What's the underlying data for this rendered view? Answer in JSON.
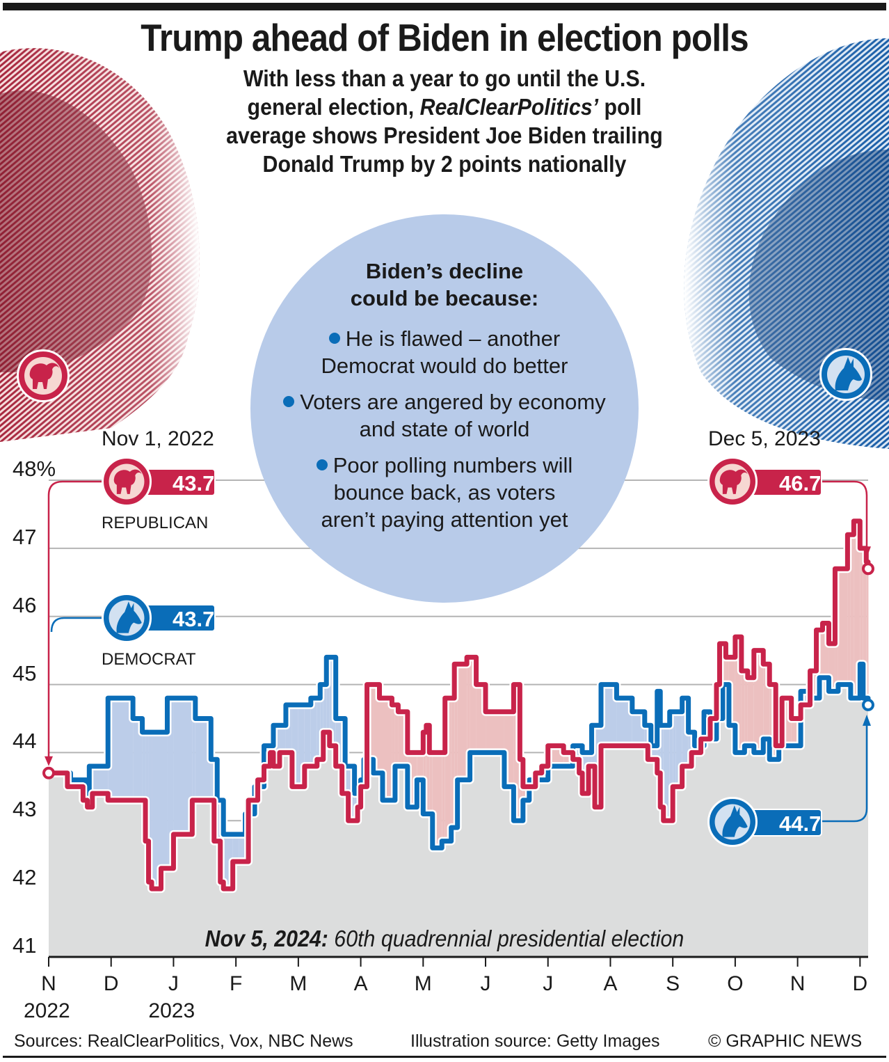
{
  "header": {
    "title": "Trump ahead of Biden in election polls",
    "subtitle_parts": [
      "With less than a year to go until the U.S. general election, ",
      "RealClearPolitics’",
      " poll average shows President Joe Biden trailing Donald Trump by 2 points nationally"
    ]
  },
  "circle": {
    "heading_line1": "Biden’s decline",
    "heading_line2": "could be because:",
    "items": [
      "He is flawed – another Democrat would do better",
      "Voters are angered by economy and state of world",
      "Poor polling numbers will bounce back, as voters aren’t paying attention yet"
    ]
  },
  "annotations": {
    "start_date": "Nov 1, 2022",
    "end_date": "Dec 5, 2023",
    "republican_label": "REPUBLICAN",
    "democrat_label": "DEMOCRAT",
    "start_rep_value": "43.7",
    "start_dem_value": "43.7",
    "end_rep_value": "46.7",
    "end_dem_value": "44.7",
    "republican_icon": "elephant-icon",
    "democrat_icon": "donkey-icon"
  },
  "note": {
    "bold": "Nov 5, 2024:",
    "text": " 60th quadrennial presidential election"
  },
  "footer": {
    "sources": "Sources: RealClearPolitics, Vox, NBC News",
    "illustration": "Illustration source: Getty Images",
    "copyright": "© GRAPHIC NEWS"
  },
  "colors": {
    "republican": "#c8234a",
    "democrat": "#0a6db8",
    "rep_fill": "#ecc0c0",
    "dem_fill": "#bccde9",
    "base_fill": "#dcdddd",
    "circle": "#b8cbe9"
  },
  "chart_data": {
    "type": "line",
    "title": "RealClearPolitics poll average, Trump vs Biden",
    "xlabel": "",
    "ylabel": "%",
    "ylim": [
      41,
      48
    ],
    "yticks": [
      "41",
      "42",
      "43",
      "44",
      "45",
      "46",
      "47",
      "48%"
    ],
    "xticks": [
      "N",
      "D",
      "J",
      "F",
      "M",
      "A",
      "M",
      "J",
      "J",
      "A",
      "S",
      "O",
      "N",
      "D"
    ],
    "year_labels": [
      {
        "label": "2022",
        "at": "N"
      },
      {
        "label": "2023",
        "at": "J"
      }
    ],
    "x_units": "months since Nov 1, 2022",
    "xlim": [
      0,
      13.13
    ],
    "grid": true,
    "series": [
      {
        "name": "Republican (Trump)",
        "step": true,
        "points": [
          [
            0,
            43.7
          ],
          [
            0.3,
            43.5
          ],
          [
            0.55,
            43.3
          ],
          [
            0.62,
            43.2
          ],
          [
            0.7,
            43.4
          ],
          [
            0.95,
            43.3
          ],
          [
            1.55,
            42.7
          ],
          [
            1.6,
            42.1
          ],
          [
            1.65,
            42.0
          ],
          [
            1.8,
            42.3
          ],
          [
            2.0,
            42.3
          ],
          [
            2.0,
            42.8
          ],
          [
            2.3,
            43.3
          ],
          [
            2.65,
            43.3
          ],
          [
            2.65,
            42.7
          ],
          [
            2.75,
            42.1
          ],
          [
            2.8,
            42.0
          ],
          [
            2.95,
            42.4
          ],
          [
            3.2,
            43.3
          ],
          [
            3.35,
            43.6
          ],
          [
            3.45,
            43.8
          ],
          [
            3.55,
            44.0
          ],
          [
            3.6,
            43.8
          ],
          [
            3.7,
            44.0
          ],
          [
            3.9,
            43.5
          ],
          [
            4.1,
            43.8
          ],
          [
            4.3,
            43.9
          ],
          [
            4.4,
            44.3
          ],
          [
            4.5,
            44.1
          ],
          [
            4.6,
            43.8
          ],
          [
            4.7,
            43.4
          ],
          [
            4.8,
            43.0
          ],
          [
            4.95,
            43.2
          ],
          [
            5.0,
            43.5
          ],
          [
            5.1,
            45.0
          ],
          [
            5.3,
            44.8
          ],
          [
            5.5,
            44.7
          ],
          [
            5.6,
            44.6
          ],
          [
            5.75,
            44.0
          ],
          [
            6.0,
            44.3
          ],
          [
            6.05,
            44.4
          ],
          [
            6.1,
            44.0
          ],
          [
            6.35,
            44.8
          ],
          [
            6.5,
            45.3
          ],
          [
            6.7,
            45.4
          ],
          [
            6.85,
            45.0
          ],
          [
            7.0,
            44.6
          ],
          [
            7.45,
            45.0
          ],
          [
            7.55,
            43.9
          ],
          [
            7.6,
            43.5
          ],
          [
            7.8,
            43.7
          ],
          [
            7.9,
            43.8
          ],
          [
            8.0,
            44.1
          ],
          [
            8.25,
            44.0
          ],
          [
            8.4,
            43.9
          ],
          [
            8.5,
            43.7
          ],
          [
            8.55,
            43.4
          ],
          [
            8.65,
            43.8
          ],
          [
            8.75,
            43.2
          ],
          [
            8.85,
            44.1
          ],
          [
            9.35,
            44.1
          ],
          [
            9.6,
            43.9
          ],
          [
            9.75,
            43.7
          ],
          [
            9.8,
            43.2
          ],
          [
            9.85,
            43.0
          ],
          [
            10.0,
            43.5
          ],
          [
            10.15,
            43.8
          ],
          [
            10.3,
            44.0
          ],
          [
            10.45,
            44.2
          ],
          [
            10.6,
            44.5
          ],
          [
            10.7,
            45.0
          ],
          [
            10.75,
            45.6
          ],
          [
            10.85,
            45.4
          ],
          [
            11.0,
            45.7
          ],
          [
            11.1,
            45.2
          ],
          [
            11.2,
            45.1
          ],
          [
            11.3,
            45.5
          ],
          [
            11.45,
            45.3
          ],
          [
            11.55,
            45.0
          ],
          [
            11.65,
            44.1
          ],
          [
            11.75,
            44.8
          ],
          [
            11.9,
            44.5
          ],
          [
            12.05,
            44.7
          ],
          [
            12.2,
            45.2
          ],
          [
            12.3,
            45.8
          ],
          [
            12.4,
            45.9
          ],
          [
            12.5,
            45.6
          ],
          [
            12.6,
            46.7
          ],
          [
            12.8,
            47.2
          ],
          [
            12.9,
            47.4
          ],
          [
            13.0,
            47.0
          ],
          [
            13.1,
            46.8
          ],
          [
            13.13,
            46.7
          ]
        ]
      },
      {
        "name": "Democrat (Biden)",
        "step": true,
        "points": [
          [
            0,
            43.7
          ],
          [
            0.35,
            43.6
          ],
          [
            0.6,
            43.4
          ],
          [
            0.65,
            43.8
          ],
          [
            0.95,
            44.8
          ],
          [
            1.35,
            44.5
          ],
          [
            1.5,
            44.3
          ],
          [
            1.9,
            44.8
          ],
          [
            2.35,
            44.5
          ],
          [
            2.6,
            43.9
          ],
          [
            2.7,
            43.3
          ],
          [
            2.8,
            42.8
          ],
          [
            3.05,
            42.8
          ],
          [
            3.15,
            43.1
          ],
          [
            3.3,
            43.5
          ],
          [
            3.45,
            44.1
          ],
          [
            3.6,
            44.4
          ],
          [
            3.8,
            44.7
          ],
          [
            4.0,
            44.7
          ],
          [
            4.2,
            44.8
          ],
          [
            4.35,
            45.0
          ],
          [
            4.45,
            45.4
          ],
          [
            4.6,
            44.5
          ],
          [
            4.75,
            43.8
          ],
          [
            4.9,
            43.4
          ],
          [
            5.0,
            43.6
          ],
          [
            5.05,
            43.9
          ],
          [
            5.2,
            43.7
          ],
          [
            5.35,
            43.3
          ],
          [
            5.55,
            43.8
          ],
          [
            5.75,
            43.2
          ],
          [
            5.9,
            43.6
          ],
          [
            6.0,
            43.1
          ],
          [
            6.15,
            42.6
          ],
          [
            6.3,
            42.7
          ],
          [
            6.45,
            42.9
          ],
          [
            6.55,
            43.6
          ],
          [
            6.75,
            44.0
          ],
          [
            7.15,
            44.0
          ],
          [
            7.3,
            43.5
          ],
          [
            7.45,
            43.0
          ],
          [
            7.6,
            43.3
          ],
          [
            7.7,
            43.6
          ],
          [
            7.9,
            43.6
          ],
          [
            8.0,
            43.8
          ],
          [
            8.25,
            43.8
          ],
          [
            8.4,
            44.1
          ],
          [
            8.55,
            44.0
          ],
          [
            8.7,
            44.4
          ],
          [
            8.85,
            45.0
          ],
          [
            9.1,
            44.8
          ],
          [
            9.35,
            44.6
          ],
          [
            9.55,
            44.4
          ],
          [
            9.65,
            44.1
          ],
          [
            9.75,
            44.9
          ],
          [
            9.8,
            44.4
          ],
          [
            9.95,
            44.6
          ],
          [
            10.05,
            44.6
          ],
          [
            10.15,
            44.8
          ],
          [
            10.25,
            44.3
          ],
          [
            10.35,
            44.1
          ],
          [
            10.5,
            44.6
          ],
          [
            10.6,
            44.2
          ],
          [
            10.7,
            44.5
          ],
          [
            10.8,
            45.0
          ],
          [
            10.9,
            44.4
          ],
          [
            11.0,
            44.0
          ],
          [
            11.15,
            44.1
          ],
          [
            11.3,
            44.0
          ],
          [
            11.45,
            44.2
          ],
          [
            11.55,
            43.9
          ],
          [
            11.7,
            44.1
          ],
          [
            11.9,
            44.1
          ],
          [
            12.05,
            44.9
          ],
          [
            12.2,
            44.8
          ],
          [
            12.35,
            45.1
          ],
          [
            12.5,
            44.9
          ],
          [
            12.65,
            45.0
          ],
          [
            12.85,
            44.8
          ],
          [
            13.0,
            45.3
          ],
          [
            13.05,
            44.8
          ],
          [
            13.13,
            44.7
          ]
        ]
      }
    ],
    "annotations": [
      {
        "date": "Nov 1, 2022",
        "republican": 43.7,
        "democrat": 43.7
      },
      {
        "date": "Dec 5, 2023",
        "republican": 46.7,
        "democrat": 44.7
      }
    ]
  }
}
